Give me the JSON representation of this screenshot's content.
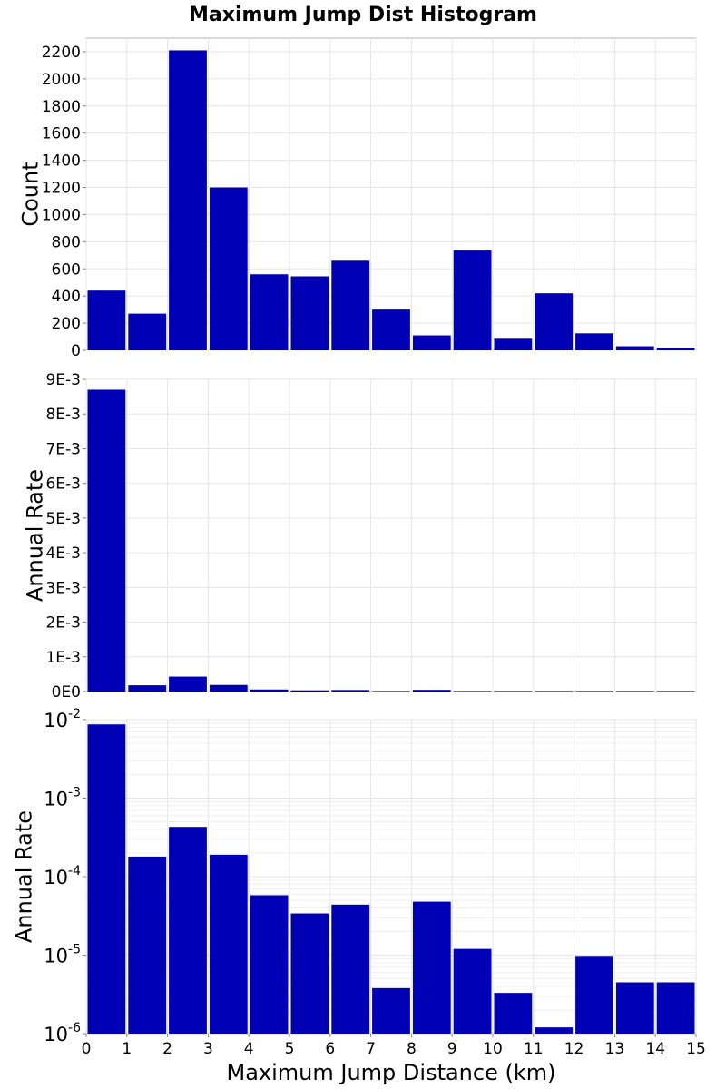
{
  "chart_data": [
    {
      "type": "bar",
      "title": "Maximum Jump Dist Histogram",
      "ylabel": "Count",
      "xlim": [
        0,
        15
      ],
      "ylim": [
        0,
        2300
      ],
      "yticks": [
        0,
        200,
        400,
        600,
        800,
        1000,
        1200,
        1400,
        1600,
        1800,
        2000,
        2200
      ],
      "ytick_labels": [
        "0",
        "200",
        "400",
        "600",
        "800",
        "1000",
        "1200",
        "1400",
        "1600",
        "1800",
        "2000",
        "2200"
      ],
      "x": [
        0.5,
        1.5,
        2.5,
        3.5,
        4.5,
        5.5,
        6.5,
        7.5,
        8.5,
        9.5,
        10.5,
        11.5,
        12.5,
        13.5,
        14.5
      ],
      "values": [
        440,
        270,
        2210,
        1200,
        560,
        545,
        660,
        300,
        110,
        735,
        85,
        420,
        125,
        30,
        15
      ],
      "grid": true,
      "color": "#0000b4"
    },
    {
      "type": "bar",
      "ylabel": "Annual Rate",
      "xlim": [
        0,
        15
      ],
      "ylim": [
        0,
        0.009
      ],
      "yticks": [
        0,
        0.001,
        0.002,
        0.003,
        0.004,
        0.005,
        0.006,
        0.007,
        0.008,
        0.009
      ],
      "ytick_labels": [
        "0E0",
        "1E-3",
        "2E-3",
        "3E-3",
        "4E-3",
        "5E-3",
        "6E-3",
        "7E-3",
        "8E-3",
        "9E-3"
      ],
      "x": [
        0.5,
        1.5,
        2.5,
        3.5,
        4.5,
        5.5,
        6.5,
        7.5,
        8.5,
        9.5,
        10.5,
        11.5,
        12.5,
        13.5,
        14.5
      ],
      "values": [
        0.0087,
        0.00018,
        0.00043,
        0.00019,
        5.8e-05,
        3.4e-05,
        4.4e-05,
        3.8e-06,
        4.8e-05,
        1.2e-05,
        3.3e-06,
        1.2e-06,
        9.8e-06,
        4.5e-06,
        4.5e-06
      ],
      "grid": true,
      "color": "#0000b4"
    },
    {
      "type": "bar",
      "ylabel": "Annual Rate",
      "xlabel": "Maximum Jump Distance (km)",
      "yscale": "log",
      "xlim": [
        0,
        15
      ],
      "ylim": [
        1e-06,
        0.01
      ],
      "yticks": [
        1e-06,
        1e-05,
        0.0001,
        0.001,
        0.01
      ],
      "ytick_labels": [
        {
          "base": "10",
          "exp": "-6"
        },
        {
          "base": "10",
          "exp": "-5"
        },
        {
          "base": "10",
          "exp": "-4"
        },
        {
          "base": "10",
          "exp": "-3"
        },
        {
          "base": "10",
          "exp": "-2"
        }
      ],
      "xticks": [
        0,
        1,
        2,
        3,
        4,
        5,
        6,
        7,
        8,
        9,
        10,
        11,
        12,
        13,
        14,
        15
      ],
      "xtick_labels": [
        "0",
        "1",
        "2",
        "3",
        "4",
        "5",
        "6",
        "7",
        "8",
        "9",
        "10",
        "11",
        "12",
        "13",
        "14",
        "15"
      ],
      "x": [
        0.5,
        1.5,
        2.5,
        3.5,
        4.5,
        5.5,
        6.5,
        7.5,
        8.5,
        9.5,
        10.5,
        11.5,
        12.5,
        13.5,
        14.5
      ],
      "values": [
        0.0087,
        0.00018,
        0.00043,
        0.00019,
        5.8e-05,
        3.4e-05,
        4.4e-05,
        3.8e-06,
        4.8e-05,
        1.2e-05,
        3.3e-06,
        1.2e-06,
        9.8e-06,
        4.5e-06,
        4.5e-06
      ],
      "grid": true,
      "color": "#0000b4"
    }
  ]
}
